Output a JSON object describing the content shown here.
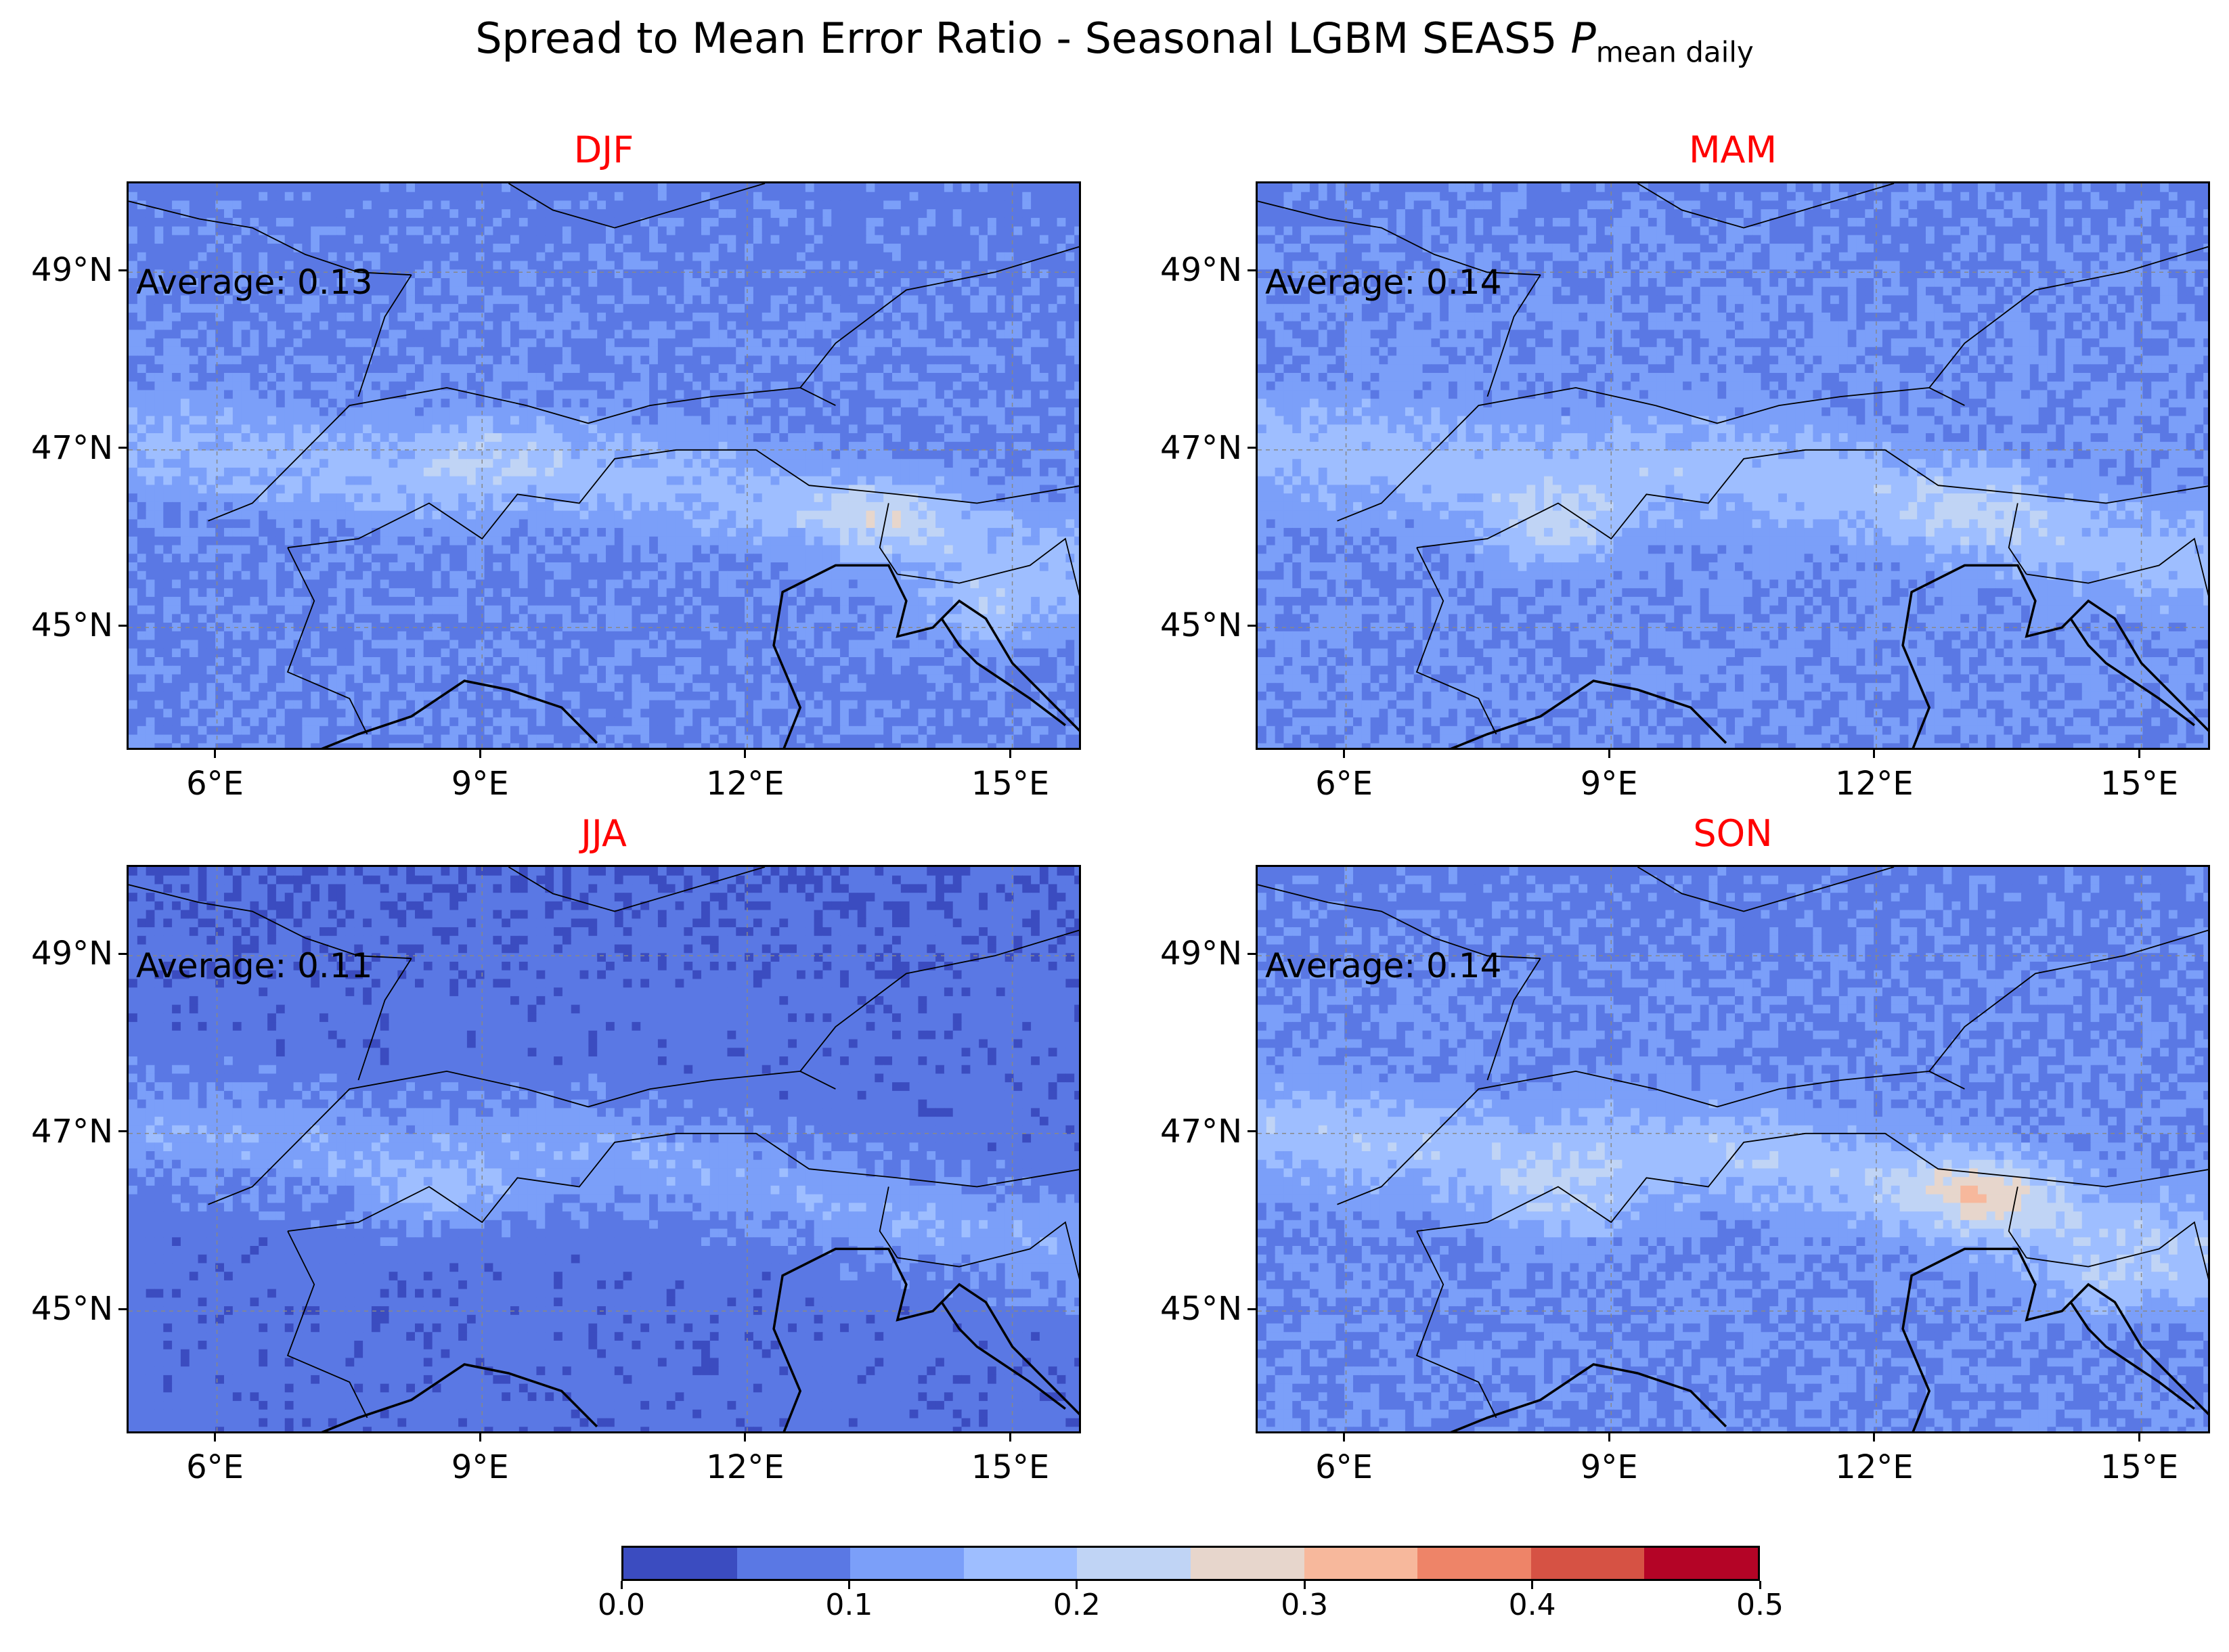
{
  "figure": {
    "title_main": "Spread to Mean Error Ratio - Seasonal LGBM SEAS5 ",
    "title_symbol": "P",
    "title_subscript": "mean daily"
  },
  "chart_data": [
    {
      "type": "heatmap",
      "title": "DJF",
      "average_label": "Average: 0.13",
      "average": 0.13,
      "x_ticks": [
        "6°E",
        "9°E",
        "12°E",
        "15°E"
      ],
      "y_ticks": [
        "49°N",
        "47°N",
        "45°N"
      ],
      "xlim": [
        5.0,
        15.8
      ],
      "ylim": [
        43.6,
        50.0
      ]
    },
    {
      "type": "heatmap",
      "title": "MAM",
      "average_label": "Average: 0.14",
      "average": 0.14,
      "x_ticks": [
        "6°E",
        "9°E",
        "12°E",
        "15°E"
      ],
      "y_ticks": [
        "49°N",
        "47°N",
        "45°N"
      ],
      "xlim": [
        5.0,
        15.8
      ],
      "ylim": [
        43.6,
        50.0
      ]
    },
    {
      "type": "heatmap",
      "title": "JJA",
      "average_label": "Average: 0.11",
      "average": 0.11,
      "x_ticks": [
        "6°E",
        "9°E",
        "12°E",
        "15°E"
      ],
      "y_ticks": [
        "49°N",
        "47°N",
        "45°N"
      ],
      "xlim": [
        5.0,
        15.8
      ],
      "ylim": [
        43.6,
        50.0
      ]
    },
    {
      "type": "heatmap",
      "title": "SON",
      "average_label": "Average: 0.14",
      "average": 0.14,
      "x_ticks": [
        "6°E",
        "9°E",
        "12°E",
        "15°E"
      ],
      "y_ticks": [
        "49°N",
        "47°N",
        "45°N"
      ],
      "xlim": [
        5.0,
        15.8
      ],
      "ylim": [
        43.6,
        50.0
      ]
    }
  ],
  "colorbar": {
    "range": [
      0.0,
      0.5
    ],
    "colors": [
      "#3b4cc0",
      "#5a78e4",
      "#7b9ff9",
      "#9ebeff",
      "#c0d4f5",
      "#e7d6cc",
      "#f7b89c",
      "#ee8468",
      "#d65244",
      "#b40426"
    ],
    "labels": [
      "0.0",
      "0.1",
      "0.2",
      "0.3",
      "0.4",
      "0.5"
    ]
  }
}
